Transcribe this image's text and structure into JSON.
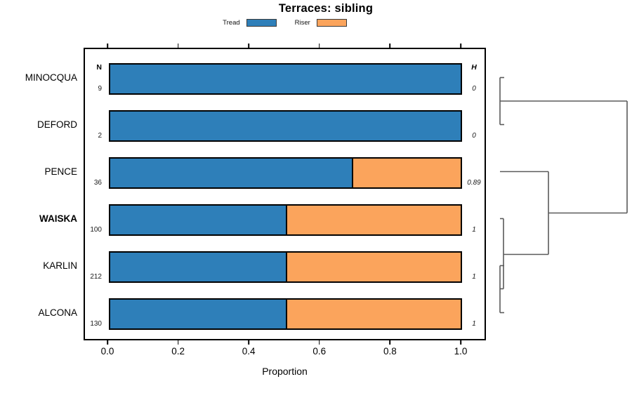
{
  "title": "Terraces: sibling",
  "legend": {
    "items": [
      {
        "label": "Tread",
        "color": "#2E7FB9"
      },
      {
        "label": "Riser",
        "color": "#FBA45C"
      }
    ]
  },
  "columns": {
    "n_header": "N",
    "h_header": "H"
  },
  "x_axis": {
    "label": "Proportion",
    "ticks": [
      "0.0",
      "0.2",
      "0.4",
      "0.6",
      "0.8",
      "1.0"
    ]
  },
  "chart_data": {
    "type": "bar",
    "orientation": "horizontal",
    "stacked": true,
    "title": "Terraces: sibling",
    "xlabel": "Proportion",
    "xlim": [
      0,
      1
    ],
    "categories": [
      "MINOCQUA",
      "DEFORD",
      "PENCE",
      "WAISKA",
      "KARLIN",
      "ALCONA"
    ],
    "label_bold": [
      false,
      false,
      false,
      true,
      false,
      false
    ],
    "series": [
      {
        "name": "Tread",
        "color": "#2E7FB9",
        "values": [
          1.0,
          1.0,
          0.69,
          0.5,
          0.5,
          0.5
        ]
      },
      {
        "name": "Riser",
        "color": "#FBA45C",
        "values": [
          0.0,
          0.0,
          0.31,
          0.5,
          0.5,
          0.5
        ]
      }
    ],
    "n_values": [
      "9",
      "2",
      "36",
      "100",
      "212",
      "130"
    ],
    "h_values": [
      "0",
      "0",
      "0.89",
      "1",
      "1",
      "1"
    ],
    "dendrogram": {
      "description": "right-side cluster tree: (MINOCQUA,DEFORD) join ~0; (KARLIN,ALCONA) join ~0, WAISKA joins low, PENCE joins mid, root joins both groups",
      "line_color": "#5a5a5a",
      "segments": [
        [
          712,
          110.5,
          718,
          110.5
        ],
        [
          712,
          110.5,
          712,
          177.5
        ],
        [
          712,
          177.5,
          718,
          177.5
        ],
        [
          712,
          144,
          893,
          144
        ],
        [
          893,
          144,
          893,
          303.5
        ],
        [
          781,
          303.5,
          893,
          303.5
        ],
        [
          712,
          244.5,
          781,
          244.5
        ],
        [
          781,
          244.5,
          781,
          362.5
        ],
        [
          717,
          362.5,
          781,
          362.5
        ],
        [
          712,
          311.5,
          717,
          311.5
        ],
        [
          717,
          311.5,
          717,
          411.5
        ],
        [
          712,
          411.5,
          717,
          411.5
        ],
        [
          712,
          378.5,
          718,
          378.5
        ],
        [
          712,
          378.5,
          712,
          445.5
        ],
        [
          712,
          445.5,
          718,
          445.5
        ]
      ]
    }
  }
}
